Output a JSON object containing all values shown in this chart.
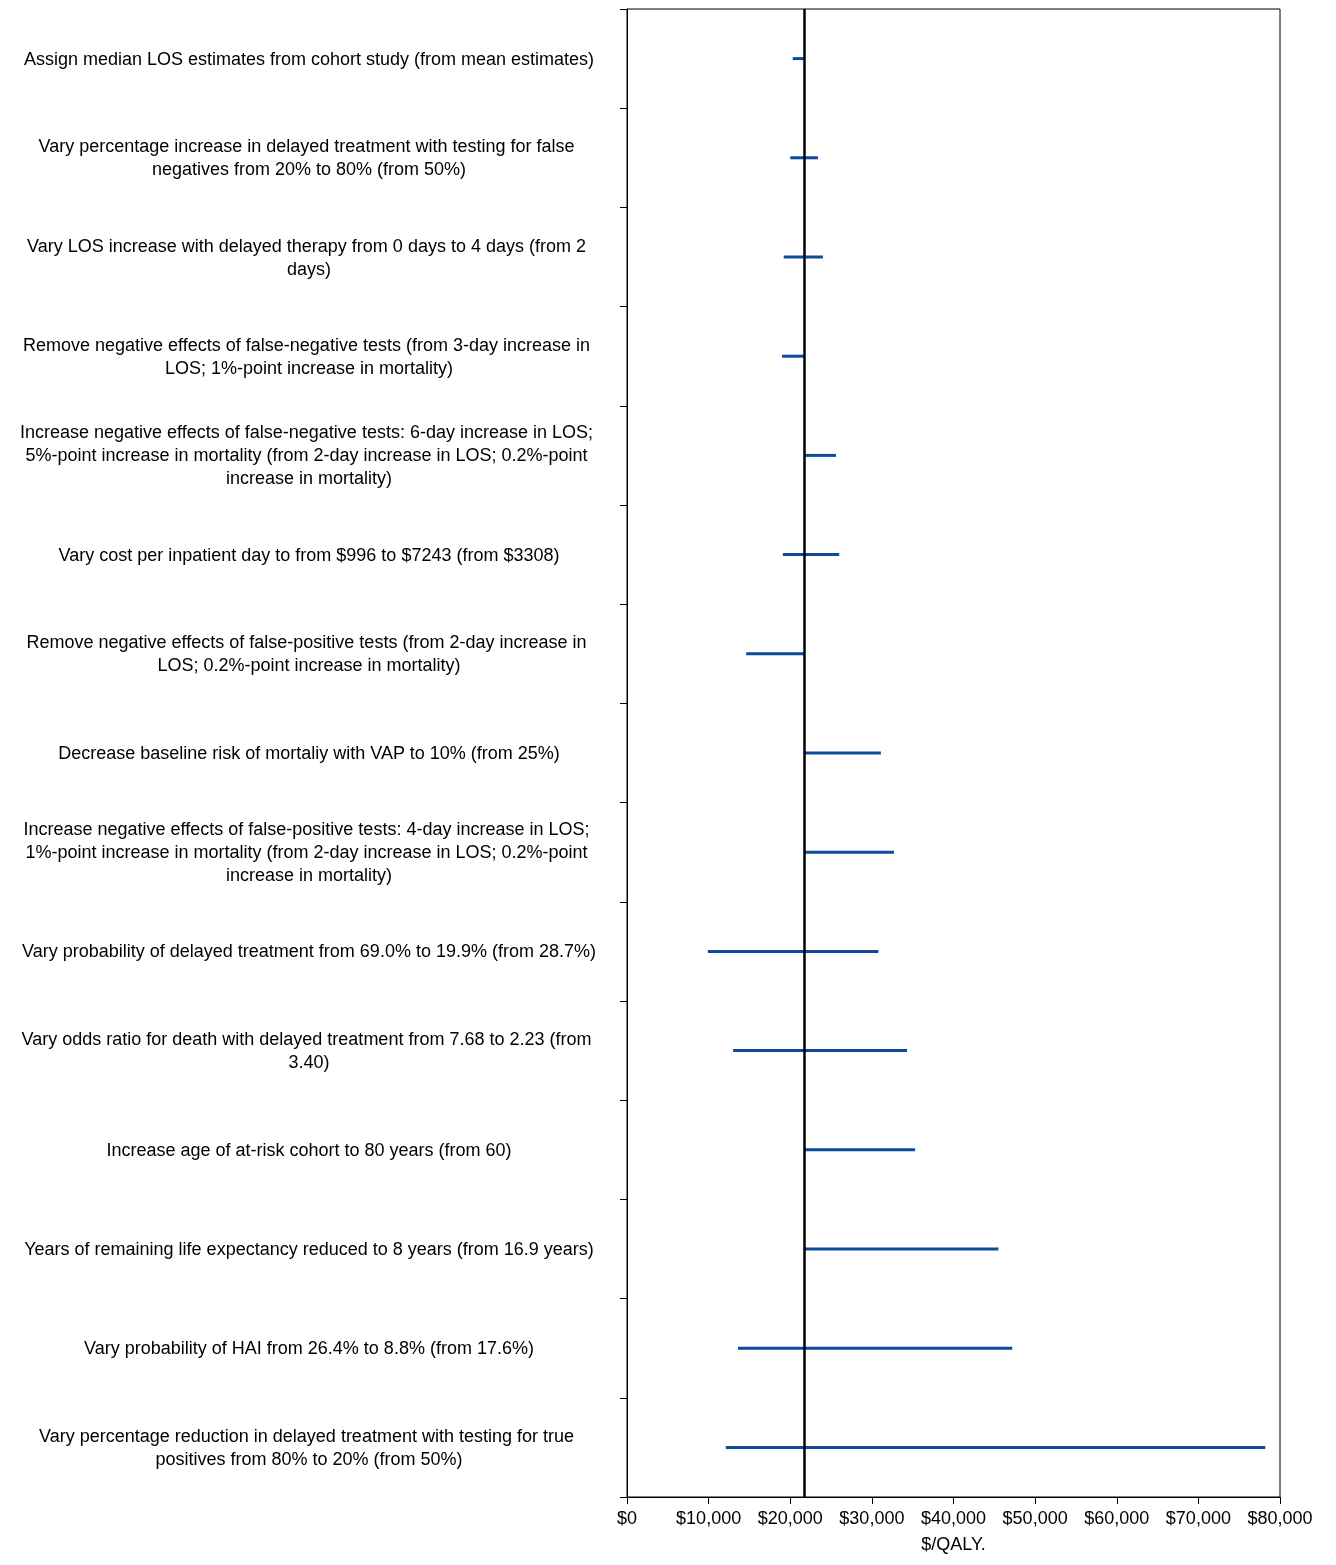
{
  "chart_data": {
    "type": "bar",
    "orientation": "horizontal",
    "xlabel": "$/QALY.",
    "categories": [
      "Assign median LOS estimates from cohort study (from mean estimates)",
      "Vary percentage increase in delayed treatment with testing for false negatives from 20% to 80% (from 50%)",
      "Vary LOS increase with delayed therapy from 0 days to 4 days (from 2 days)",
      "Remove negative effects of false-negative tests (from 3-day increase in LOS; 1%-point increase in mortality)",
      "Increase negative effects of false-negative tests: 6-day increase in LOS; 5%-point increase in mortality (from 2-day increase in LOS; 0.2%-point increase in mortality)",
      "Vary cost per inpatient day to from $996 to $7243 (from $3308)",
      "Remove negative effects of false-positive tests (from 2-day increase in LOS; 0.2%-point increase in mortality)",
      "Decrease baseline risk of mortaliy with VAP to 10% (from 25%)",
      "Increase negative effects of false-positive tests: 4-day increase in LOS; 1%-point increase in mortality (from 2-day increase in LOS; 0.2%-point increase in mortality)",
      "Vary probability of delayed treatment from 69.0% to 19.9% (from 28.7%)",
      "Vary odds ratio for death with delayed treatment from 7.68 to 2.23 (from 3.40)",
      "Increase age of at-risk cohort to 80 years (from 60)",
      "Years of remaining life expectancy reduced to 8 years (from 16.9 years)",
      "Vary probability of HAI from 26.4% to 8.8% (from 17.6%)",
      "Vary percentage reduction in delayed treatment with testing for true positives from 80% to 20% (from 50%)"
    ],
    "base": [
      20300,
      20000,
      19200,
      19000,
      21700,
      19100,
      14600,
      21700,
      21700,
      9900,
      13000,
      21700,
      21700,
      13600,
      12100
    ],
    "values": [
      1400,
      3400,
      4800,
      2700,
      3900,
      6900,
      7100,
      9400,
      11000,
      20900,
      21300,
      13600,
      23800,
      33600,
      66100
    ],
    "color": "#0d4a9c",
    "xlim": [
      0,
      80000
    ],
    "xticks": [
      {
        "value": 0,
        "label": "$0"
      },
      {
        "value": 10000,
        "label": "$10,000"
      },
      {
        "value": 20000,
        "label": "$20,000"
      },
      {
        "value": 30000,
        "label": "$30,000"
      },
      {
        "value": 40000,
        "label": "$40,000"
      },
      {
        "value": 50000,
        "label": "$50,000"
      },
      {
        "value": 60000,
        "label": "$60,000"
      },
      {
        "value": 70000,
        "label": "$70,000"
      },
      {
        "value": 80000,
        "label": "$80,000"
      }
    ],
    "ref_lines": [
      {
        "axis": "x",
        "value": 21700,
        "color": "#000000"
      }
    ],
    "grid": false
  }
}
